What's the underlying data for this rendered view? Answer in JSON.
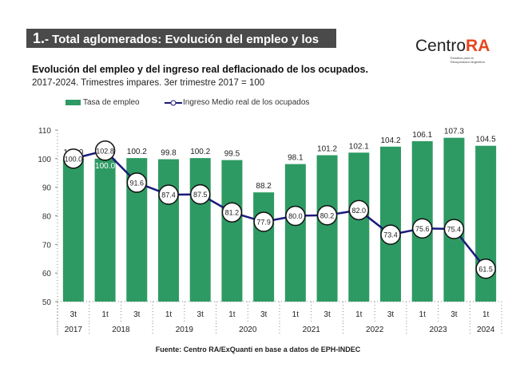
{
  "banner": {
    "number": "1.",
    "text": "- Total aglomerados: Evolución del empleo y los ingresos"
  },
  "logo": {
    "text_main": "Centro",
    "text_accent": "RA",
    "tagline": "Estudios para la Recuperación Argentina"
  },
  "colors": {
    "bar": "#2e9a63",
    "line": "#1a1a7a",
    "banner": "#4a4a4a",
    "logo_accent": "#e8461e"
  },
  "chart_data": {
    "type": "bar+line",
    "title": "Evolución del empleo y del ingreso real deflacionado de los ocupados.",
    "subtitle": "2017-2024. Trimestres impares. 3er trimestre 2017 = 100",
    "quarters": [
      "3t",
      "1t",
      "3t",
      "1t",
      "3t",
      "1t",
      "3t",
      "1t",
      "3t",
      "1t",
      "3t",
      "1t",
      "3t",
      "1t"
    ],
    "years": [
      {
        "label": "2017",
        "span": 1
      },
      {
        "label": "2018",
        "span": 2
      },
      {
        "label": "2019",
        "span": 2
      },
      {
        "label": "2020",
        "span": 2
      },
      {
        "label": "2021",
        "span": 2
      },
      {
        "label": "2022",
        "span": 2
      },
      {
        "label": "2023",
        "span": 2
      },
      {
        "label": "2024",
        "span": 1
      }
    ],
    "series": [
      {
        "name": "Tasa de empleo",
        "kind": "bar",
        "values": [
          100.0,
          100.0,
          100.2,
          99.8,
          100.2,
          99.5,
          88.2,
          98.1,
          101.2,
          102.1,
          104.2,
          106.1,
          107.3,
          104.5
        ]
      },
      {
        "name": "Ingreso Medio real de los ocupados",
        "kind": "line",
        "values": [
          100.0,
          102.8,
          91.6,
          87.4,
          87.5,
          81.2,
          77.9,
          80.0,
          80.2,
          82.0,
          73.4,
          75.6,
          75.4,
          61.5
        ]
      }
    ],
    "yticks": [
      50,
      60,
      70,
      80,
      90,
      100,
      110
    ],
    "ylim": [
      50,
      110
    ],
    "grid": "dotted vertical separators",
    "legend": "top"
  },
  "source": "Fuente: Centro RA/ExQuanti en base a datos de EPH-INDEC"
}
